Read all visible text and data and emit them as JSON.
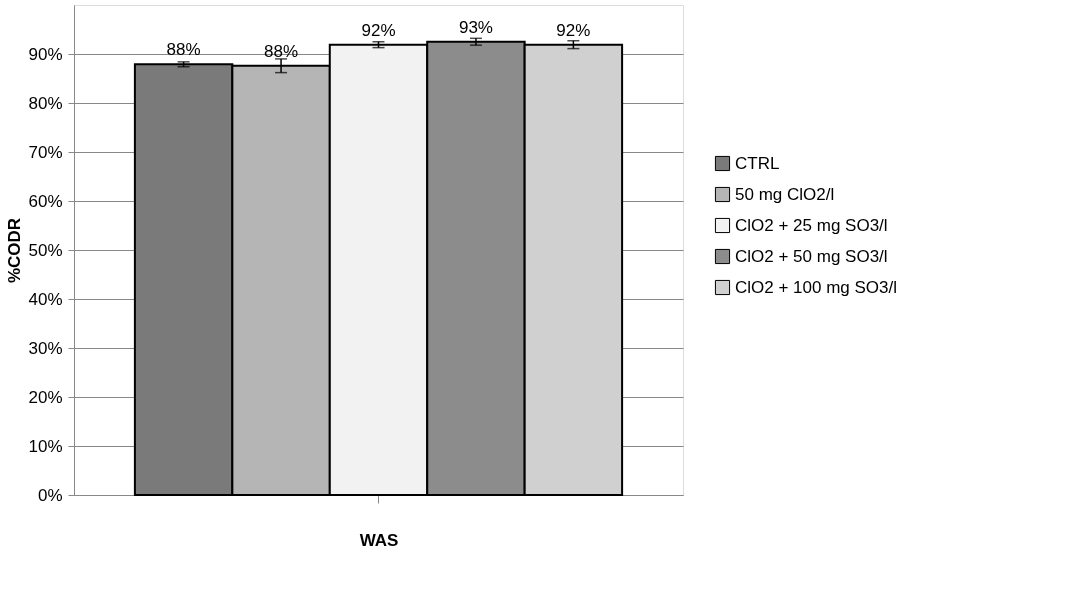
{
  "chart_data": {
    "type": "bar",
    "xlabel": "WAS",
    "ylabel": "%CODR",
    "categories": [
      null
    ],
    "series": [
      {
        "name": "CTRL",
        "color": "#7a7a7a",
        "values": [
          87.9
        ],
        "errors": [
          0.5
        ],
        "value_labels": [
          "88%"
        ]
      },
      {
        "name": "50 mg ClO2/l",
        "color": "#b5b5b5",
        "values": [
          87.6
        ],
        "errors": [
          1.4
        ],
        "value_labels": [
          "88%"
        ]
      },
      {
        "name": "ClO2 + 25 mg SO3/l",
        "color": "#f2f2f2",
        "values": [
          91.9
        ],
        "errors": [
          0.6
        ],
        "value_labels": [
          "92%"
        ]
      },
      {
        "name": "ClO2 + 50 mg SO3/l",
        "color": "#8c8c8c",
        "values": [
          92.5
        ],
        "errors": [
          0.7
        ],
        "value_labels": [
          "93%"
        ]
      },
      {
        "name": "ClO2 + 100 mg SO3/l",
        "color": "#d0d0d0",
        "values": [
          91.9
        ],
        "errors": [
          0.8
        ],
        "value_labels": [
          "92%"
        ]
      }
    ],
    "ylim": [
      0,
      100
    ],
    "yticks": [
      {
        "value": 0,
        "label": "0%"
      },
      {
        "value": 10,
        "label": "10%"
      },
      {
        "value": 20,
        "label": "20%"
      },
      {
        "value": 30,
        "label": "30%"
      },
      {
        "value": 40,
        "label": "40%"
      },
      {
        "value": 50,
        "label": "50%"
      },
      {
        "value": 60,
        "label": "60%"
      },
      {
        "value": 70,
        "label": "70%"
      },
      {
        "value": 80,
        "label": "80%"
      },
      {
        "value": 90,
        "label": "90%"
      }
    ],
    "grid": "y",
    "legend": "right"
  }
}
